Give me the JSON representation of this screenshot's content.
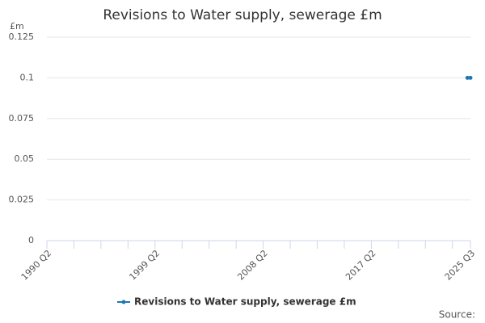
{
  "chart_data": {
    "type": "line",
    "title": "Revisions to Water supply, sewerage £m",
    "y_label": "£m",
    "source": "Source:",
    "categories": [
      "1990 Q2",
      null,
      null,
      null,
      null,
      null,
      null,
      null,
      null,
      null,
      null,
      null,
      null,
      null,
      null,
      null,
      null,
      null,
      null,
      null,
      null,
      null,
      null,
      null,
      null,
      null,
      null,
      null,
      null,
      null,
      null,
      null,
      null,
      null,
      null,
      null,
      "1999 Q2",
      null,
      null,
      null,
      null,
      null,
      null,
      null,
      null,
      null,
      null,
      null,
      null,
      null,
      null,
      null,
      null,
      null,
      null,
      null,
      null,
      null,
      null,
      null,
      null,
      null,
      null,
      null,
      null,
      null,
      null,
      null,
      null,
      null,
      null,
      null,
      "2008 Q2",
      null,
      null,
      null,
      null,
      null,
      null,
      null,
      null,
      null,
      null,
      null,
      null,
      null,
      null,
      null,
      null,
      null,
      null,
      null,
      null,
      null,
      null,
      null,
      null,
      null,
      null,
      null,
      null,
      null,
      null,
      null,
      null,
      null,
      null,
      null,
      "2017 Q2",
      null,
      null,
      null,
      null,
      null,
      null,
      null,
      null,
      null,
      null,
      null,
      null,
      null,
      null,
      null,
      null,
      null,
      null,
      null,
      null,
      null,
      null,
      null,
      null,
      null,
      null,
      null,
      null,
      null,
      null,
      null,
      null,
      "2025 Q3"
    ],
    "series": [
      {
        "name": "Revisions to Water supply, sewerage £m",
        "color": "#1f77b4",
        "values": [
          null,
          null,
          null,
          null,
          null,
          null,
          null,
          null,
          null,
          null,
          null,
          null,
          null,
          null,
          null,
          null,
          null,
          null,
          null,
          null,
          null,
          null,
          null,
          null,
          null,
          null,
          null,
          null,
          null,
          null,
          null,
          null,
          null,
          null,
          null,
          null,
          null,
          null,
          null,
          null,
          null,
          null,
          null,
          null,
          null,
          null,
          null,
          null,
          null,
          null,
          null,
          null,
          null,
          null,
          null,
          null,
          null,
          null,
          null,
          null,
          null,
          null,
          null,
          null,
          null,
          null,
          null,
          null,
          null,
          null,
          null,
          null,
          null,
          null,
          null,
          null,
          null,
          null,
          null,
          null,
          null,
          null,
          null,
          null,
          null,
          null,
          null,
          null,
          null,
          null,
          null,
          null,
          null,
          null,
          null,
          null,
          null,
          null,
          null,
          null,
          null,
          null,
          null,
          null,
          null,
          null,
          null,
          null,
          null,
          null,
          null,
          null,
          null,
          null,
          null,
          null,
          null,
          null,
          null,
          null,
          null,
          null,
          null,
          null,
          null,
          null,
          null,
          null,
          null,
          null,
          null,
          null,
          null,
          null,
          null,
          null,
          null,
          null,
          null,
          null,
          0.1,
          0.1
        ]
      }
    ],
    "ylim": [
      0,
      0.125
    ],
    "yticks": [
      0,
      0.025,
      0.05,
      0.075,
      0.1,
      0.125
    ],
    "grid": true,
    "legend": "bottom"
  }
}
